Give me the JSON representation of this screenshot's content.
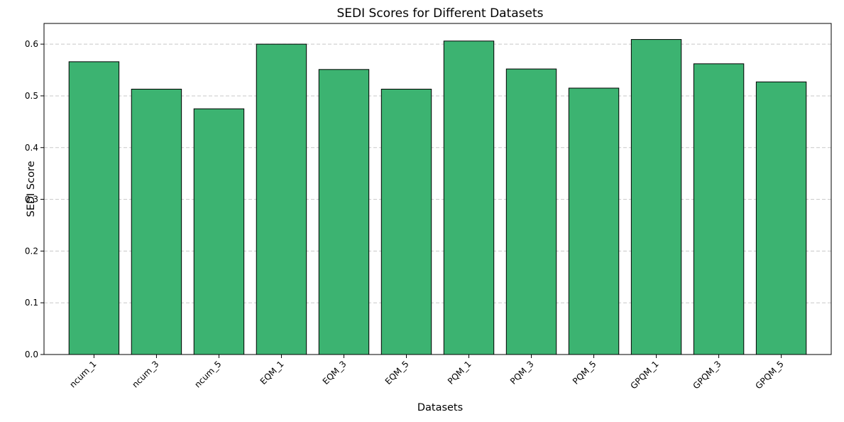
{
  "chart_data": {
    "type": "bar",
    "title": "SEDI Scores for Different Datasets",
    "xlabel": "Datasets",
    "ylabel": "SEDI Score",
    "categories": [
      "ncum_1",
      "ncum_3",
      "ncum_5",
      "EQM_1",
      "EQM_3",
      "EQM_5",
      "PQM_1",
      "PQM_3",
      "PQM_5",
      "GPQM_1",
      "GPQM_3",
      "GPQM_5"
    ],
    "values": [
      0.566,
      0.513,
      0.475,
      0.6,
      0.551,
      0.513,
      0.606,
      0.552,
      0.515,
      0.609,
      0.562,
      0.527
    ],
    "ylim": [
      0,
      0.64
    ],
    "yticks": [
      "0.0",
      "0.1",
      "0.2",
      "0.3",
      "0.4",
      "0.5",
      "0.6"
    ],
    "grid": "y-dashed",
    "legend": "none",
    "colors": {
      "bar_fill": "#3cb371",
      "bar_edge": "#000000",
      "grid": "#c8c8c8",
      "axis": "#000000"
    }
  }
}
